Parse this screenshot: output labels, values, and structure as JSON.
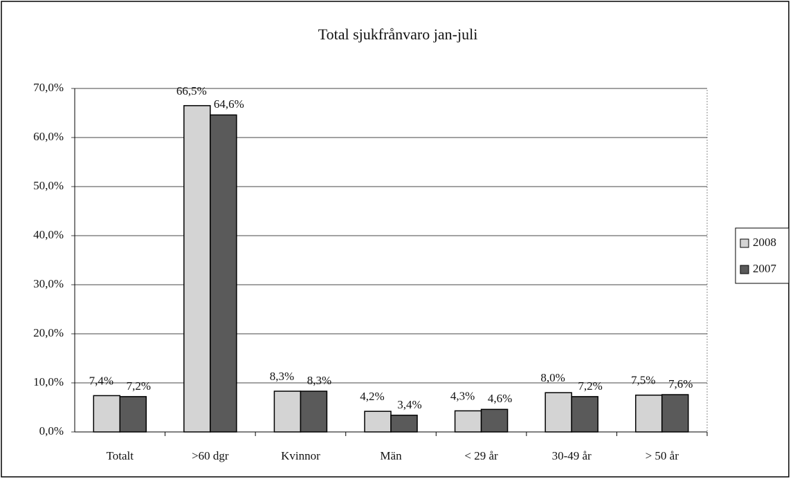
{
  "chart_data": {
    "type": "bar",
    "title": "Total sjukfrånvaro jan-juli",
    "categories": [
      "Totalt",
      ">60 dgr",
      "Kvinnor",
      "Män",
      "< 29 år",
      "30-49 år",
      "> 50 år"
    ],
    "series": [
      {
        "name": "2008",
        "color": "#d4d4d4",
        "values": [
          7.4,
          66.5,
          8.3,
          4.2,
          4.3,
          8.0,
          7.5
        ],
        "value_labels": [
          "7,4%",
          "66,5%",
          "8,3%",
          "4,2%",
          "4,3%",
          "8,0%",
          "7,5%"
        ]
      },
      {
        "name": "2007",
        "color": "#5a5a5a",
        "values": [
          7.2,
          64.6,
          8.3,
          3.4,
          4.6,
          7.2,
          7.6
        ],
        "value_labels": [
          "7,2%",
          "64,6%",
          "8,3%",
          "3,4%",
          "4,6%",
          "7,2%",
          "7,6%"
        ]
      }
    ],
    "ylim": [
      0,
      70
    ],
    "yticks": [
      {
        "value": 0,
        "label": "0,0%"
      },
      {
        "value": 10,
        "label": "10,0%"
      },
      {
        "value": 20,
        "label": "20,0%"
      },
      {
        "value": 30,
        "label": "30,0%"
      },
      {
        "value": 40,
        "label": "40,0%"
      },
      {
        "value": 50,
        "label": "50,0%"
      },
      {
        "value": 60,
        "label": "60,0%"
      },
      {
        "value": 70,
        "label": "70,0%"
      }
    ],
    "grid": true,
    "legend": "right"
  }
}
